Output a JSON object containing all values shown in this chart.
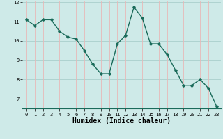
{
  "x": [
    0,
    1,
    2,
    3,
    4,
    5,
    6,
    7,
    8,
    9,
    10,
    11,
    12,
    13,
    14,
    15,
    16,
    17,
    18,
    19,
    20,
    21,
    22,
    23
  ],
  "y": [
    11.1,
    10.8,
    11.1,
    11.1,
    10.5,
    10.2,
    10.1,
    9.5,
    8.8,
    8.3,
    8.3,
    9.85,
    10.3,
    11.75,
    11.2,
    9.85,
    9.85,
    9.3,
    8.5,
    7.7,
    7.7,
    8.0,
    7.55,
    6.6
  ],
  "line_color": "#1a6b5a",
  "marker": "D",
  "marker_size": 1.8,
  "linewidth": 1.0,
  "bg_color": "#ceeae8",
  "grid_color_h": "#aacfcc",
  "grid_color_v": "#e8b8b8",
  "xlabel": "Humidex (Indice chaleur)",
  "xlabel_fontsize": 7,
  "xlim": [
    -0.5,
    23.5
  ],
  "ylim": [
    6.5,
    12.05
  ],
  "yticks": [
    7,
    8,
    9,
    10,
    11,
    12
  ],
  "xticks": [
    0,
    1,
    2,
    3,
    4,
    5,
    6,
    7,
    8,
    9,
    10,
    11,
    12,
    13,
    14,
    15,
    16,
    17,
    18,
    19,
    20,
    21,
    22,
    23
  ],
  "tick_fontsize": 5.0
}
